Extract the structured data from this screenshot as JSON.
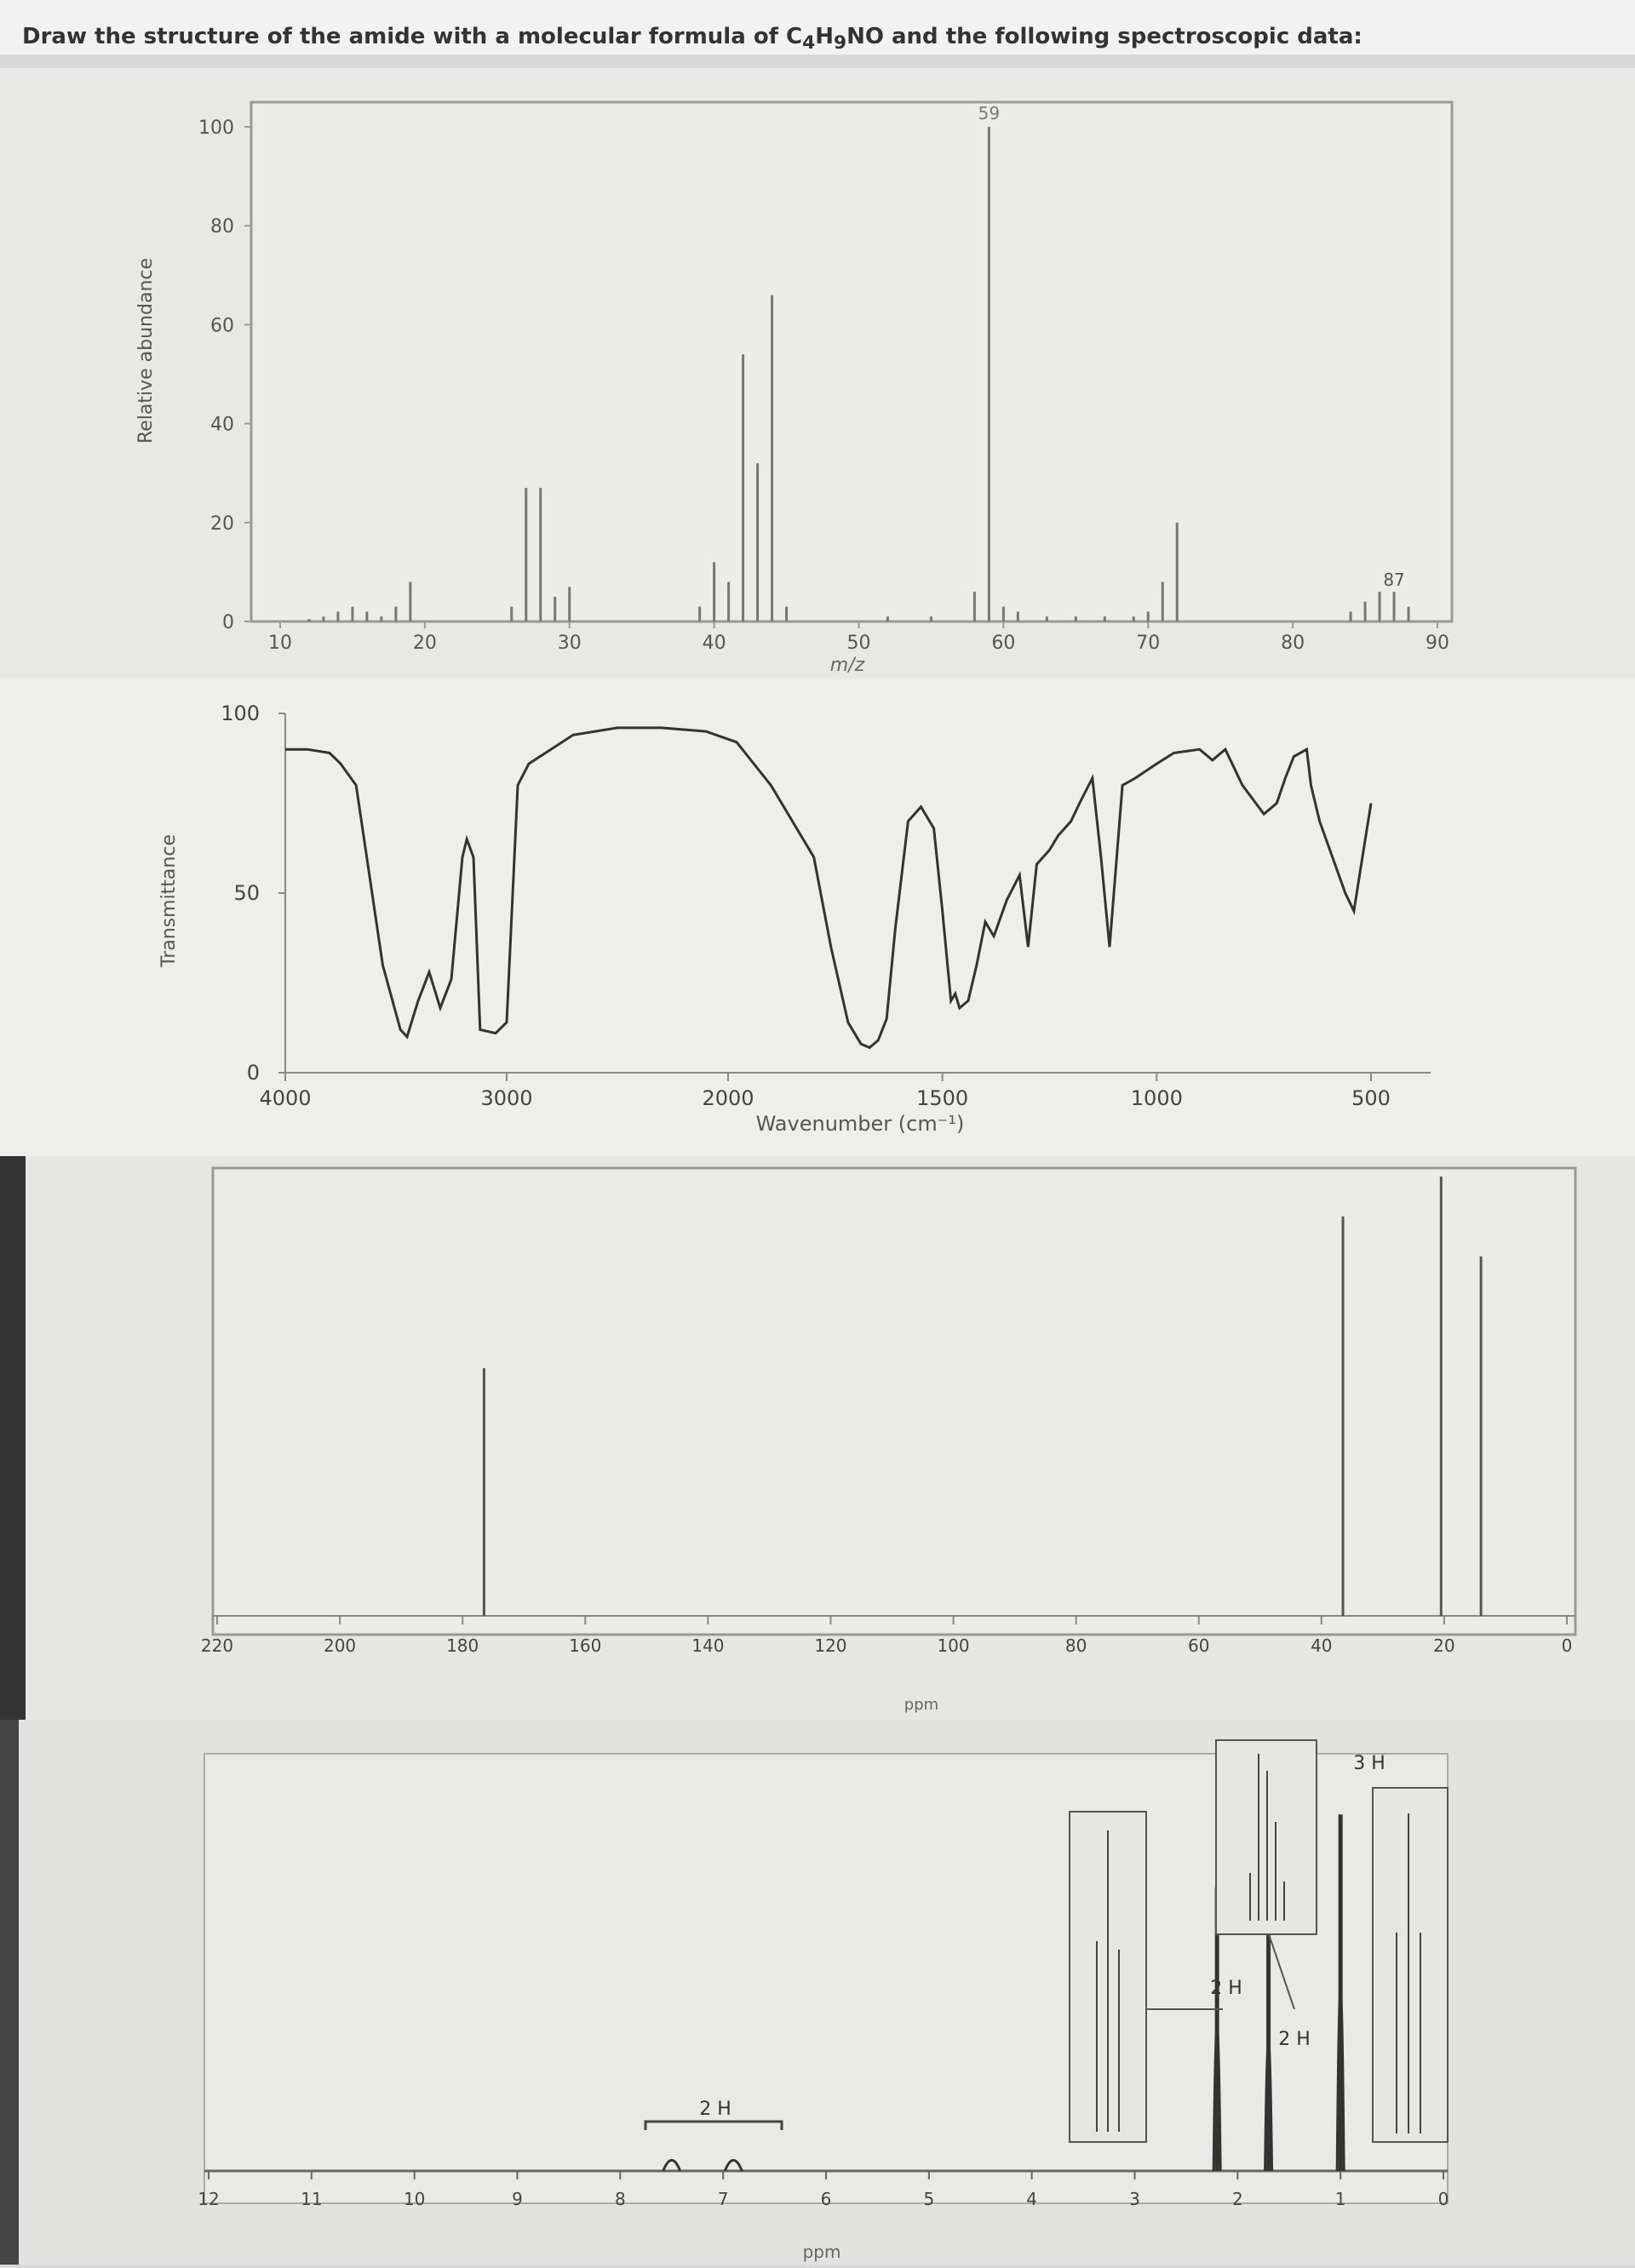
{
  "title": {
    "prefix": "Draw the structure of the amide with a molecular formula of ",
    "formula": "C4H9NO",
    "suffix": " and the following spectroscopic data:"
  },
  "chart_data": [
    {
      "type": "bar",
      "title": "",
      "xlabel": "m/z",
      "ylabel": "Relative abundance",
      "xlim": [
        8,
        91
      ],
      "ylim": [
        0,
        105
      ],
      "xticks": [
        10,
        20,
        30,
        40,
        50,
        60,
        70,
        80,
        90
      ],
      "yticks": [
        0,
        20,
        40,
        60,
        80,
        100
      ],
      "x": [
        12,
        13,
        14,
        15,
        16,
        17,
        18,
        19,
        26,
        27,
        28,
        29,
        30,
        39,
        40,
        41,
        42,
        43,
        44,
        45,
        52,
        55,
        58,
        59,
        60,
        61,
        63,
        65,
        67,
        69,
        70,
        71,
        72,
        84,
        85,
        86,
        87,
        88
      ],
      "values": [
        0.5,
        1,
        2,
        3,
        2,
        1,
        3,
        8,
        3,
        27,
        27,
        5,
        7,
        3,
        12,
        8,
        54,
        32,
        66,
        3,
        1,
        1,
        6,
        100,
        3,
        2,
        1,
        1,
        1,
        1,
        2,
        8,
        20,
        2,
        4,
        6,
        6,
        3
      ],
      "annotations": [
        "59",
        "87"
      ]
    },
    {
      "type": "line",
      "title": "",
      "xlabel": "Wavenumber (cm⁻¹)",
      "ylabel": "Transmittance",
      "xlim": [
        4000,
        500
      ],
      "ylim": [
        0,
        100
      ],
      "xticks": [
        4000,
        3000,
        2000,
        1500,
        1000,
        500
      ],
      "yticks": [
        0,
        50,
        100
      ],
      "x": [
        4000,
        3900,
        3800,
        3750,
        3680,
        3560,
        3480,
        3450,
        3400,
        3350,
        3300,
        3250,
        3200,
        3180,
        3150,
        3120,
        3050,
        3000,
        2950,
        2900,
        2800,
        2700,
        2500,
        2300,
        2100,
        1980,
        1900,
        1800,
        1760,
        1720,
        1690,
        1670,
        1650,
        1630,
        1610,
        1580,
        1550,
        1520,
        1500,
        1480,
        1470,
        1460,
        1440,
        1420,
        1400,
        1380,
        1350,
        1320,
        1300,
        1280,
        1250,
        1230,
        1200,
        1180,
        1150,
        1130,
        1110,
        1080,
        1050,
        1000,
        960,
        900,
        870,
        840,
        800,
        750,
        720,
        700,
        680,
        650,
        640,
        620,
        590,
        560,
        540,
        520,
        500
      ],
      "y": [
        90,
        90,
        89,
        86,
        80,
        30,
        12,
        10,
        20,
        28,
        18,
        26,
        60,
        65,
        60,
        12,
        11,
        14,
        80,
        86,
        90,
        94,
        96,
        96,
        95,
        92,
        80,
        60,
        35,
        14,
        8,
        7,
        9,
        15,
        40,
        70,
        74,
        68,
        45,
        20,
        22,
        18,
        20,
        30,
        42,
        38,
        48,
        55,
        35,
        58,
        62,
        66,
        70,
        75,
        82,
        60,
        35,
        80,
        82,
        86,
        89,
        90,
        87,
        90,
        80,
        72,
        75,
        82,
        88,
        90,
        80,
        70,
        60,
        50,
        45,
        60,
        75
      ],
      "x_tick_note": "Wavenumber (cm⁻¹)"
    },
    {
      "type": "bar",
      "title": "",
      "xlabel": "ppm",
      "ylabel": "",
      "xlim": [
        220,
        0
      ],
      "ylim": [
        0,
        110
      ],
      "xticks": [
        220,
        200,
        180,
        160,
        140,
        120,
        100,
        80,
        60,
        40,
        20,
        0
      ],
      "x": [
        176.5,
        36.5,
        20.5,
        14
      ],
      "values": [
        62,
        100,
        110,
        90
      ]
    },
    {
      "type": "bar",
      "title": "",
      "xlabel": "ppm",
      "ylabel": "",
      "xlim": [
        12,
        0
      ],
      "ylim": [
        0,
        110
      ],
      "xticks": [
        12,
        11,
        10,
        9,
        8,
        7,
        6,
        5,
        4,
        3,
        2,
        1,
        0
      ],
      "x": [
        7.5,
        6.9,
        2.2,
        1.7,
        1.0
      ],
      "values": [
        5,
        5,
        78,
        70,
        98
      ],
      "annotations": [
        "2 H",
        "2 H",
        "2 H",
        "3 H"
      ]
    }
  ]
}
